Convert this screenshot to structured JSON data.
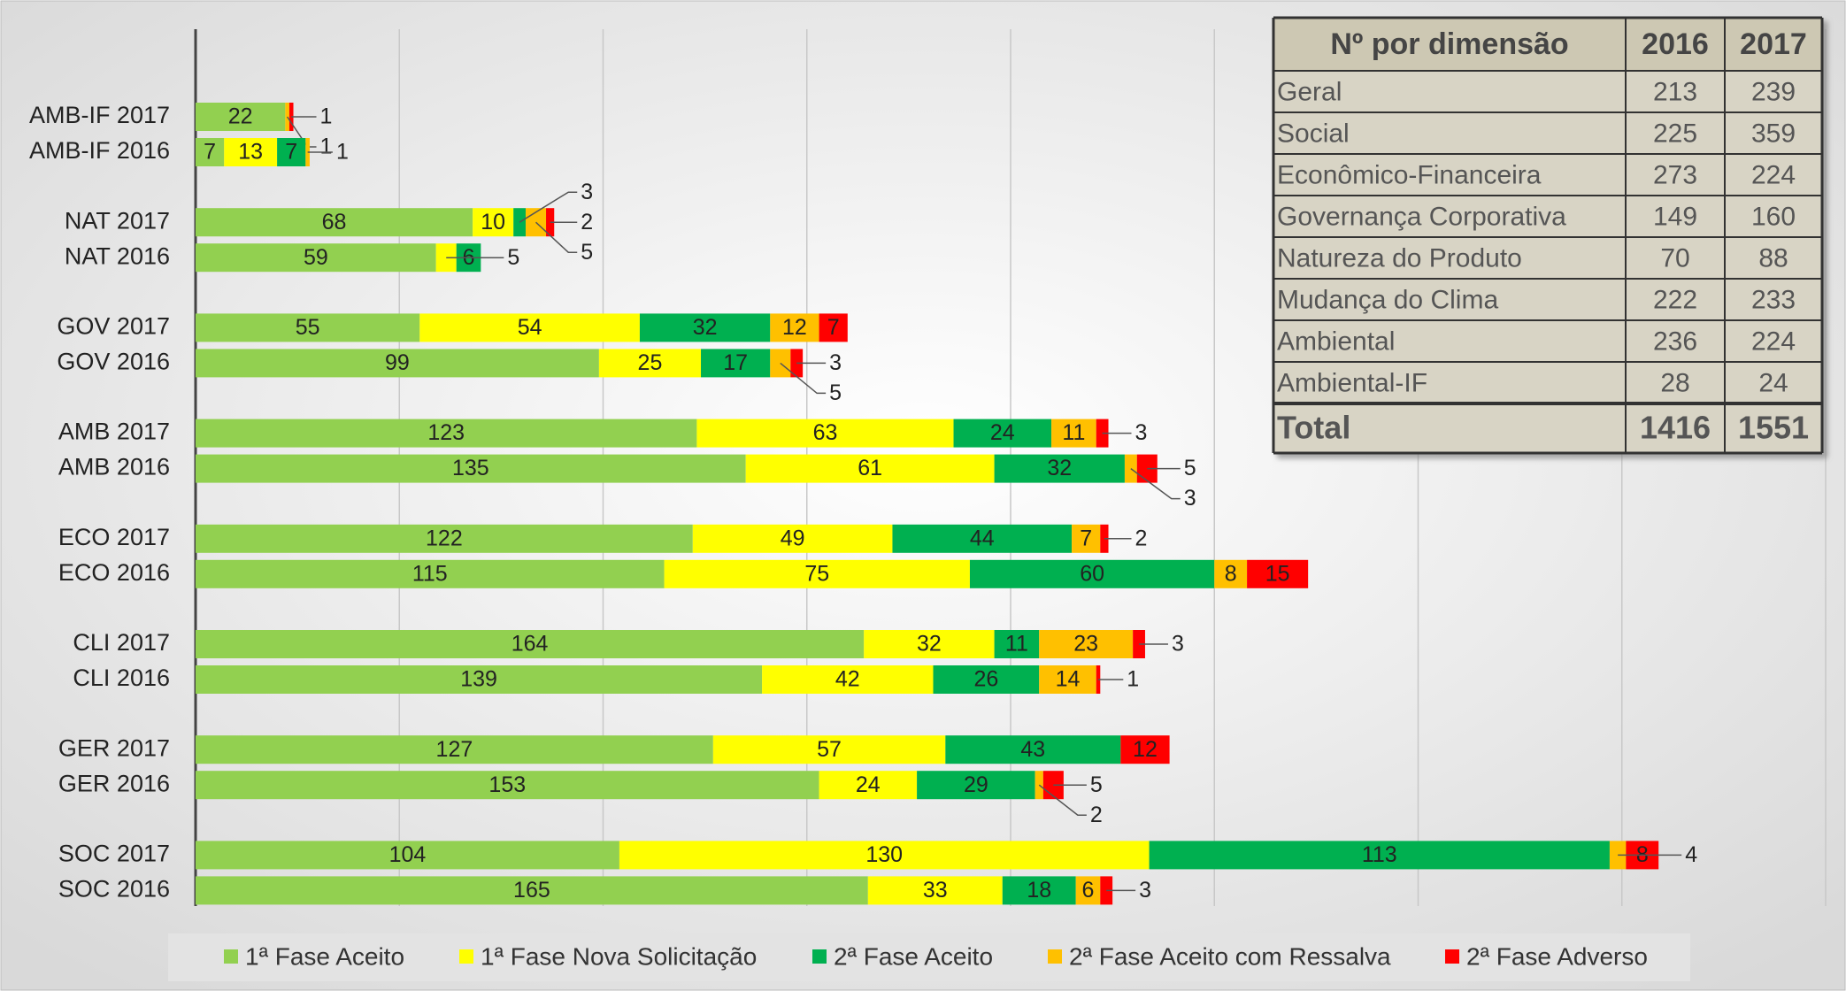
{
  "chart_data": {
    "type": "stacked_barh",
    "categories": [
      "AMB-IF 2017",
      "AMB-IF 2016",
      "NAT 2017",
      "NAT 2016",
      "GOV 2017",
      "GOV 2016",
      "AMB 2017",
      "AMB 2016",
      "ECO 2017",
      "ECO 2016",
      "CLI 2017",
      "CLI 2016",
      "GER 2017",
      "GER 2016",
      "SOC 2017",
      "SOC 2016"
    ],
    "series": [
      {
        "name": "1ª Fase Aceito",
        "color": "#92d050",
        "values": [
          22,
          7,
          68,
          59,
          55,
          99,
          123,
          135,
          122,
          115,
          164,
          139,
          127,
          153,
          104,
          165
        ]
      },
      {
        "name": "1ª Fase Nova Solicitação",
        "color": "#ffff00",
        "values": [
          0,
          13,
          10,
          5,
          54,
          25,
          63,
          61,
          49,
          75,
          32,
          42,
          57,
          24,
          130,
          33
        ]
      },
      {
        "name": "2ª Fase Aceito",
        "color": "#00b050",
        "values": [
          0,
          7,
          3,
          6,
          32,
          17,
          24,
          32,
          44,
          60,
          11,
          26,
          43,
          29,
          113,
          18
        ]
      },
      {
        "name": "2ª Fase Aceito com Ressalva",
        "color": "#ffc000",
        "values": [
          1,
          1,
          5,
          0,
          12,
          5,
          11,
          3,
          7,
          8,
          23,
          14,
          0,
          2,
          4,
          6
        ]
      },
      {
        "name": "2ª Fase Adverso",
        "color": "#ff0000",
        "values": [
          1,
          0,
          2,
          0,
          7,
          3,
          3,
          5,
          2,
          15,
          3,
          1,
          12,
          5,
          8,
          3
        ]
      }
    ],
    "xlim": [
      0,
      400
    ],
    "xticks": [
      0,
      50,
      100,
      150,
      200,
      250,
      300,
      350,
      400
    ],
    "grid": true,
    "legend": "bottom"
  },
  "table": {
    "header": [
      "Nº por dimensão",
      "2016",
      "2017"
    ],
    "rows": [
      [
        "Geral",
        213,
        239
      ],
      [
        "Social",
        225,
        359
      ],
      [
        "Econômico-Financeira",
        273,
        224
      ],
      [
        "Governança Corporativa",
        149,
        160
      ],
      [
        "Natureza do Produto",
        70,
        88
      ],
      [
        "Mudança do Clima",
        222,
        233
      ],
      [
        "Ambiental",
        236,
        224
      ],
      [
        "Ambiental-IF",
        28,
        24
      ]
    ],
    "total": [
      "Total",
      1416,
      1551
    ]
  }
}
